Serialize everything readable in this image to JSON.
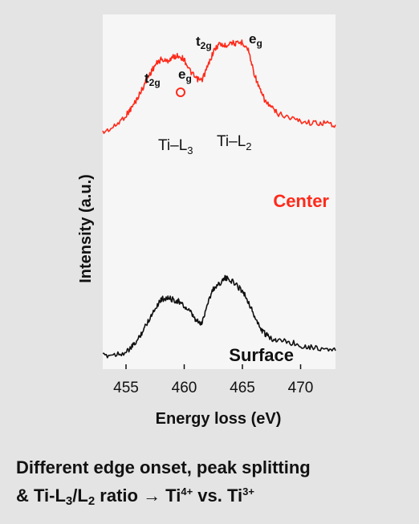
{
  "chart_data": {
    "type": "line",
    "xlabel": "Energy loss (eV)",
    "ylabel": "Intensity (a.u.)",
    "xlim": [
      453,
      473
    ],
    "xticks": [
      455,
      460,
      465,
      470
    ],
    "grid": false,
    "series": [
      {
        "name": "Center",
        "color": "#ff2a1a",
        "x": [
          453,
          454,
          455,
          455.5,
          456,
          456.5,
          457,
          457.5,
          458,
          458.5,
          459,
          459.5,
          460,
          460.5,
          461,
          461.5,
          462,
          462.5,
          463,
          463.5,
          464,
          464.5,
          465,
          465.5,
          466,
          466.5,
          467,
          467.5,
          468,
          469,
          470,
          471,
          472,
          473
        ],
        "y": [
          0.52,
          0.55,
          0.61,
          0.65,
          0.7,
          0.76,
          0.82,
          0.87,
          0.9,
          0.89,
          0.91,
          0.92,
          0.9,
          0.84,
          0.8,
          0.79,
          0.86,
          0.94,
          0.98,
          0.97,
          0.99,
          0.98,
          0.99,
          0.95,
          0.83,
          0.74,
          0.68,
          0.65,
          0.62,
          0.6,
          0.58,
          0.57,
          0.57,
          0.56
        ]
      },
      {
        "name": "Surface",
        "color": "#111111",
        "x": [
          453,
          454,
          455,
          455.5,
          456,
          456.5,
          457,
          457.5,
          458,
          458.5,
          459,
          459.5,
          460,
          460.5,
          461,
          461.5,
          462,
          462.5,
          463,
          463.5,
          464,
          464.5,
          465,
          465.5,
          466,
          466.5,
          467,
          467.5,
          468,
          469,
          470,
          471,
          472,
          473
        ],
        "y": [
          0.12,
          0.13,
          0.14,
          0.17,
          0.21,
          0.27,
          0.33,
          0.39,
          0.44,
          0.45,
          0.44,
          0.43,
          0.4,
          0.37,
          0.32,
          0.3,
          0.42,
          0.5,
          0.53,
          0.56,
          0.55,
          0.52,
          0.49,
          0.43,
          0.35,
          0.28,
          0.24,
          0.22,
          0.21,
          0.2,
          0.18,
          0.17,
          0.16,
          0.15
        ]
      }
    ],
    "annotations": {
      "t2g": "t",
      "t2g_sub": "2g",
      "eg": "e",
      "eg_sub": "g",
      "ti_l3": "Ti–L",
      "ti_l3_sub": "3",
      "ti_l2": "Ti–L",
      "ti_l2_sub": "2"
    }
  },
  "caption": {
    "line1": "Different edge onset, peak splitting",
    "line2_a": "& Ti-L",
    "line2_sub1": "3",
    "line2_b": "/L",
    "line2_sub2": "2",
    "line2_c": " ratio → Ti",
    "line2_sup1": "4+",
    "line2_d": " vs. Ti",
    "line2_sup2": "3+"
  }
}
